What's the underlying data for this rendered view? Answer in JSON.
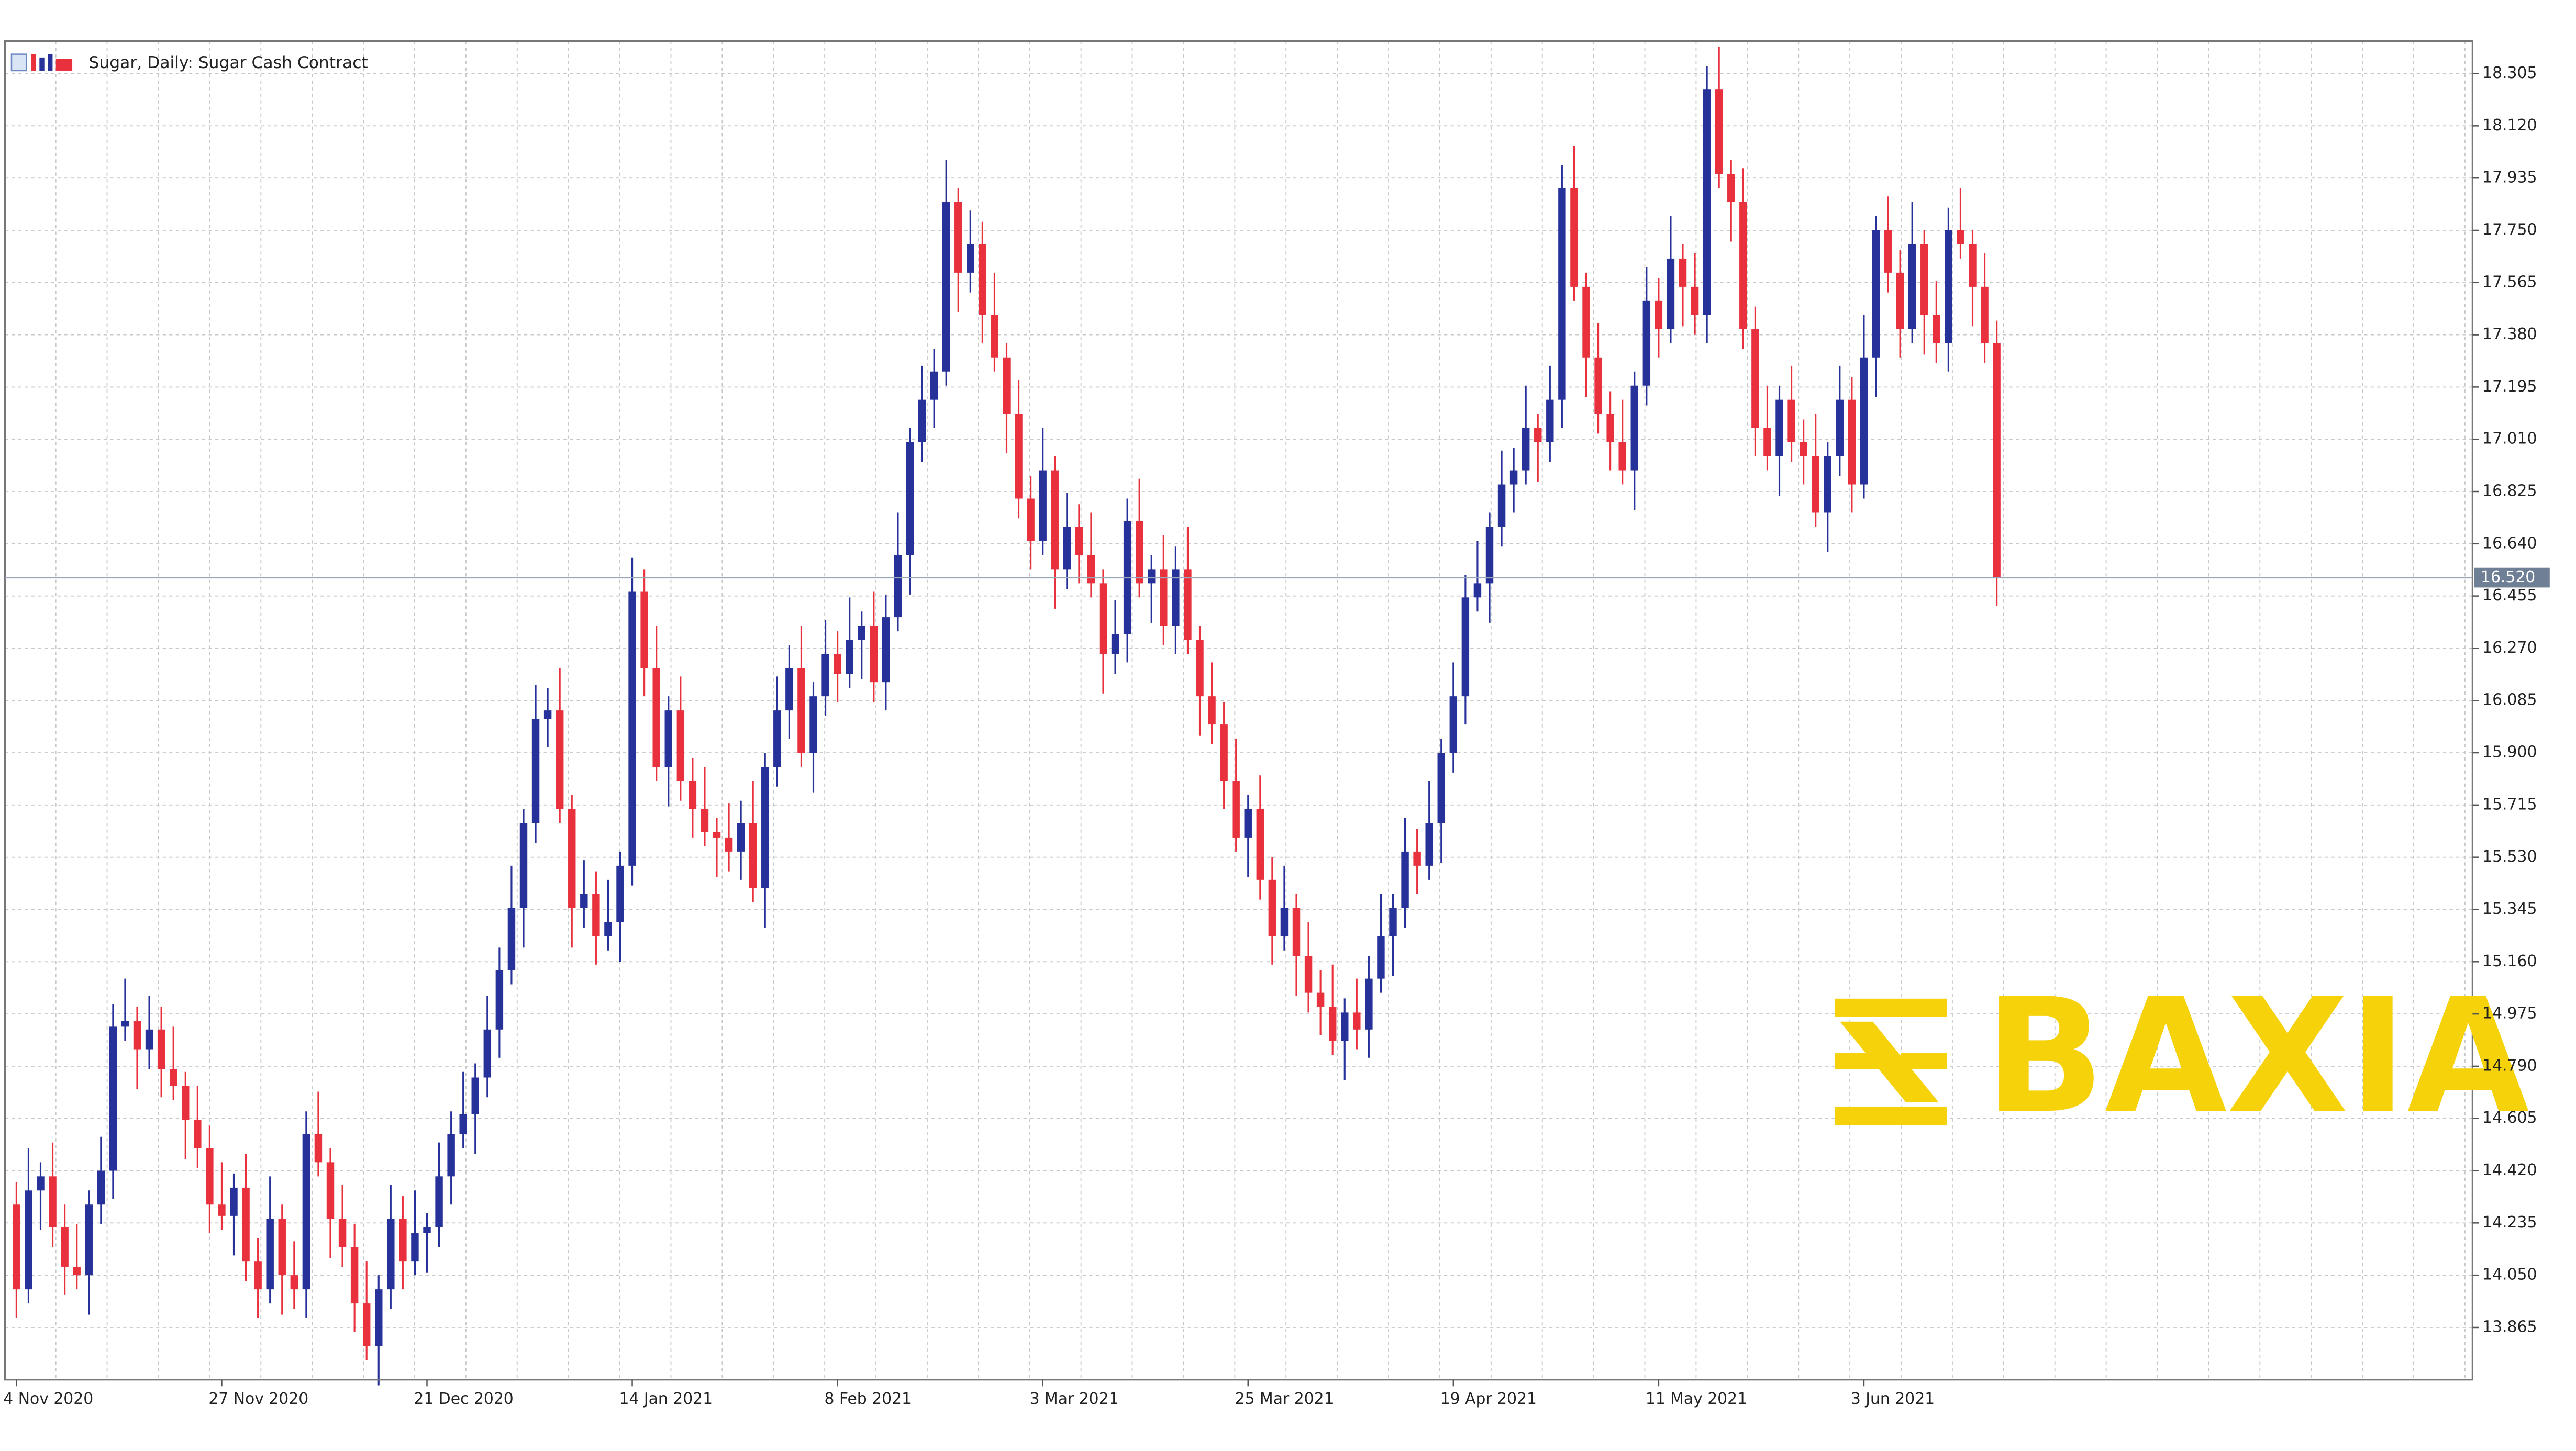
{
  "chart_data": {
    "type": "candlestick",
    "title": "Sugar, Daily:  Sugar Cash Contract",
    "watermark": "BAXIA",
    "up_color": "#27319a",
    "down_color": "#e8313c",
    "grid": true,
    "ylim": [
      13.68,
      18.42
    ],
    "yticks": [
      13.865,
      {
        "value": 14.05,
        "label": "14.050"
      },
      14.235,
      {
        "value": 14.42,
        "label": "14.420"
      },
      14.605,
      {
        "value": 14.79,
        "label": "14.790"
      },
      14.975,
      {
        "value": 15.16,
        "label": "15.160"
      },
      15.345,
      {
        "value": 15.53,
        "label": "15.530"
      },
      15.715,
      {
        "value": 15.9,
        "label": "15.900"
      },
      16.085,
      {
        "value": 16.27,
        "label": "16.270"
      },
      16.455,
      {
        "value": 16.64,
        "label": "16.640"
      },
      16.825,
      {
        "value": 17.01,
        "label": "17.010"
      },
      17.195,
      {
        "value": 17.38,
        "label": "17.380"
      },
      17.565,
      {
        "value": 17.75,
        "label": "17.750"
      },
      17.935,
      {
        "value": 18.12,
        "label": "18.120"
      },
      18.305
    ],
    "last_price": {
      "value": 16.52,
      "label": "16.520"
    },
    "categories": [
      "4 Nov 2020",
      null,
      null,
      null,
      null,
      null,
      null,
      null,
      null,
      null,
      null,
      null,
      null,
      null,
      null,
      null,
      null,
      "27 Nov 2020",
      null,
      null,
      null,
      null,
      null,
      null,
      null,
      null,
      null,
      null,
      null,
      null,
      null,
      null,
      null,
      null,
      "21 Dec 2020",
      null,
      null,
      null,
      null,
      null,
      null,
      null,
      null,
      null,
      null,
      null,
      null,
      null,
      null,
      null,
      null,
      "14 Jan 2021",
      null,
      null,
      null,
      null,
      null,
      null,
      null,
      null,
      null,
      null,
      null,
      null,
      null,
      null,
      null,
      null,
      "8 Feb 2021",
      null,
      null,
      null,
      null,
      null,
      null,
      null,
      null,
      null,
      null,
      null,
      null,
      null,
      null,
      null,
      null,
      "3 Mar 2021",
      null,
      null,
      null,
      null,
      null,
      null,
      null,
      null,
      null,
      null,
      null,
      null,
      null,
      null,
      null,
      null,
      "25 Mar 2021",
      null,
      null,
      null,
      null,
      null,
      null,
      null,
      null,
      null,
      null,
      null,
      null,
      null,
      null,
      null,
      null,
      "19 Apr 2021",
      null,
      null,
      null,
      null,
      null,
      null,
      null,
      null,
      null,
      null,
      null,
      null,
      null,
      null,
      null,
      null,
      "11 May 2021",
      null,
      null,
      null,
      null,
      null,
      null,
      null,
      null,
      null,
      null,
      null,
      null,
      null,
      null,
      null,
      null,
      "3 Jun 2021",
      null,
      null,
      null,
      null,
      null,
      null,
      null,
      null,
      null,
      null,
      null
    ],
    "series": [
      {
        "open": [
          14.3,
          14.0,
          14.35,
          14.4,
          14.22,
          14.08,
          14.05,
          14.3,
          14.42,
          14.93,
          14.95,
          14.85,
          14.92,
          14.78,
          14.72,
          14.6,
          14.5,
          14.3,
          14.26,
          14.36,
          14.1,
          14.0,
          14.25,
          14.05,
          14.0,
          14.55,
          14.45,
          14.25,
          14.15,
          13.95,
          13.8,
          14.0,
          14.25,
          14.1,
          14.2,
          14.22,
          14.4,
          14.55,
          14.62,
          14.75,
          14.92,
          15.13,
          15.35,
          15.65,
          16.02,
          16.05,
          15.7,
          15.35,
          15.4,
          15.25,
          15.3,
          15.5,
          16.47,
          16.2,
          15.85,
          16.05,
          15.8,
          15.7,
          15.62,
          15.6,
          15.55,
          15.65,
          15.42,
          15.85,
          16.05,
          16.2,
          15.9,
          16.1,
          16.25,
          16.18,
          16.3,
          16.35,
          16.15,
          16.38,
          16.6,
          17.0,
          17.15,
          17.25,
          17.85,
          17.6,
          17.7,
          17.45,
          17.3,
          17.1,
          16.8,
          16.65,
          16.9,
          16.55,
          16.7,
          16.6,
          16.5,
          16.25,
          16.32,
          16.72,
          16.5,
          16.55,
          16.35,
          16.55,
          16.3,
          16.1,
          16.0,
          15.8,
          15.6,
          15.7,
          15.45,
          15.25,
          15.35,
          15.18,
          15.05,
          15.0,
          14.88,
          14.98,
          14.92,
          15.1,
          15.25,
          15.35,
          15.55,
          15.5,
          15.65,
          15.9,
          16.1,
          16.45,
          16.5,
          16.7,
          16.85,
          16.9,
          17.05,
          17.0,
          17.15,
          17.9,
          17.55,
          17.3,
          17.1,
          17.0,
          16.9,
          17.2,
          17.5,
          17.4,
          17.65,
          17.55,
          17.45,
          18.25,
          17.95,
          17.85,
          17.4,
          17.05,
          16.95,
          17.15,
          17.0,
          16.95,
          16.75,
          16.95,
          17.15,
          16.85,
          17.3,
          17.75,
          17.6,
          17.4,
          17.7,
          17.45,
          17.35,
          17.75,
          17.7,
          17.55,
          17.35
        ],
        "high": [
          14.38,
          14.5,
          14.45,
          14.52,
          14.3,
          14.23,
          14.35,
          14.54,
          15.01,
          15.1,
          15.0,
          15.04,
          15.0,
          14.93,
          14.77,
          14.72,
          14.58,
          14.45,
          14.41,
          14.48,
          14.18,
          14.4,
          14.3,
          14.17,
          14.63,
          14.7,
          14.5,
          14.37,
          14.23,
          14.1,
          14.05,
          14.37,
          14.33,
          14.35,
          14.27,
          14.52,
          14.63,
          14.77,
          14.8,
          15.04,
          15.21,
          15.5,
          15.7,
          16.14,
          16.13,
          16.2,
          15.75,
          15.52,
          15.48,
          15.45,
          15.55,
          16.59,
          16.55,
          16.35,
          16.1,
          16.17,
          15.88,
          15.85,
          15.67,
          15.72,
          15.73,
          15.8,
          15.9,
          16.17,
          16.28,
          16.35,
          16.15,
          16.37,
          16.33,
          16.45,
          16.4,
          16.47,
          16.46,
          16.75,
          17.05,
          17.27,
          17.33,
          18.0,
          17.9,
          17.82,
          17.78,
          17.6,
          17.35,
          17.22,
          16.88,
          17.05,
          16.95,
          16.82,
          16.78,
          16.75,
          16.55,
          16.44,
          16.8,
          16.87,
          16.6,
          16.67,
          16.63,
          16.7,
          16.35,
          16.22,
          16.08,
          15.95,
          15.75,
          15.82,
          15.53,
          15.5,
          15.4,
          15.3,
          15.13,
          15.15,
          15.03,
          15.1,
          15.18,
          15.4,
          15.4,
          15.67,
          15.63,
          15.8,
          15.95,
          16.22,
          16.53,
          16.65,
          16.75,
          16.97,
          16.98,
          17.2,
          17.1,
          17.27,
          17.98,
          18.05,
          17.6,
          17.42,
          17.18,
          17.15,
          17.25,
          17.62,
          17.58,
          17.8,
          17.7,
          17.67,
          18.33,
          18.4,
          18.0,
          17.97,
          17.48,
          17.2,
          17.2,
          17.27,
          17.08,
          17.1,
          17.0,
          17.27,
          17.23,
          17.45,
          17.8,
          17.87,
          17.68,
          17.85,
          17.75,
          17.57,
          17.83,
          17.9,
          17.75,
          17.67,
          17.43
        ],
        "low": [
          13.9,
          13.95,
          14.21,
          14.15,
          13.98,
          14.0,
          13.91,
          14.23,
          14.32,
          14.88,
          14.71,
          14.78,
          14.68,
          14.67,
          14.46,
          14.43,
          14.2,
          14.21,
          14.12,
          14.03,
          13.9,
          13.95,
          13.91,
          13.93,
          13.9,
          14.4,
          14.11,
          14.08,
          13.85,
          13.75,
          13.66,
          13.93,
          14.0,
          14.05,
          14.06,
          14.15,
          14.3,
          14.5,
          14.48,
          14.68,
          14.82,
          15.08,
          15.21,
          15.58,
          15.92,
          15.65,
          15.21,
          15.28,
          15.15,
          15.2,
          15.16,
          15.43,
          16.1,
          15.8,
          15.71,
          15.73,
          15.6,
          15.57,
          15.46,
          15.48,
          15.45,
          15.37,
          15.28,
          15.78,
          15.95,
          15.85,
          15.76,
          16.03,
          16.08,
          16.13,
          16.16,
          16.08,
          16.05,
          16.33,
          16.46,
          16.93,
          17.05,
          17.2,
          17.46,
          17.53,
          17.35,
          17.25,
          16.96,
          16.73,
          16.55,
          16.6,
          16.41,
          16.48,
          16.5,
          16.45,
          16.11,
          16.18,
          16.22,
          16.45,
          16.36,
          16.28,
          16.25,
          16.25,
          15.96,
          15.93,
          15.7,
          15.55,
          15.46,
          15.38,
          15.15,
          15.2,
          15.04,
          14.98,
          14.9,
          14.83,
          14.74,
          14.85,
          14.82,
          15.05,
          15.11,
          15.28,
          15.4,
          15.45,
          15.51,
          15.83,
          16.0,
          16.4,
          16.36,
          16.63,
          16.75,
          16.85,
          16.86,
          16.93,
          17.05,
          17.5,
          17.16,
          17.03,
          16.9,
          16.85,
          16.76,
          17.13,
          17.3,
          17.35,
          17.41,
          17.38,
          17.35,
          17.9,
          17.71,
          17.33,
          16.95,
          16.9,
          16.81,
          16.93,
          16.85,
          16.7,
          16.61,
          16.88,
          16.75,
          16.8,
          17.16,
          17.53,
          17.3,
          17.35,
          17.31,
          17.28,
          17.25,
          17.65,
          17.41,
          17.28,
          16.42
        ],
        "close": [
          14.0,
          14.35,
          14.4,
          14.22,
          14.08,
          14.05,
          14.3,
          14.42,
          14.93,
          14.95,
          14.85,
          14.92,
          14.78,
          14.72,
          14.6,
          14.5,
          14.3,
          14.26,
          14.36,
          14.1,
          14.0,
          14.25,
          14.05,
          14.0,
          14.55,
          14.45,
          14.25,
          14.15,
          13.95,
          13.8,
          14.0,
          14.25,
          14.1,
          14.2,
          14.22,
          14.4,
          14.55,
          14.62,
          14.75,
          14.92,
          15.13,
          15.35,
          15.65,
          16.02,
          16.05,
          15.7,
          15.35,
          15.4,
          15.25,
          15.3,
          15.5,
          16.47,
          16.2,
          15.85,
          16.05,
          15.8,
          15.7,
          15.62,
          15.6,
          15.55,
          15.65,
          15.42,
          15.85,
          16.05,
          16.2,
          15.9,
          16.1,
          16.25,
          16.18,
          16.3,
          16.35,
          16.15,
          16.38,
          16.6,
          17.0,
          17.15,
          17.25,
          17.85,
          17.6,
          17.7,
          17.45,
          17.3,
          17.1,
          16.8,
          16.65,
          16.9,
          16.55,
          16.7,
          16.6,
          16.5,
          16.25,
          16.32,
          16.72,
          16.5,
          16.55,
          16.35,
          16.55,
          16.3,
          16.1,
          16.0,
          15.8,
          15.6,
          15.7,
          15.45,
          15.25,
          15.35,
          15.18,
          15.05,
          15.0,
          14.88,
          14.98,
          14.92,
          15.1,
          15.25,
          15.35,
          15.55,
          15.5,
          15.65,
          15.9,
          16.1,
          16.45,
          16.5,
          16.7,
          16.85,
          16.9,
          17.05,
          17.0,
          17.15,
          17.9,
          17.55,
          17.3,
          17.1,
          17.0,
          16.9,
          17.2,
          17.5,
          17.4,
          17.65,
          17.55,
          17.45,
          18.25,
          17.95,
          17.85,
          17.4,
          17.05,
          16.95,
          17.15,
          17.0,
          16.95,
          16.75,
          16.95,
          17.15,
          16.85,
          17.3,
          17.75,
          17.6,
          17.4,
          17.7,
          17.45,
          17.35,
          17.75,
          17.7,
          17.55,
          17.35,
          16.52
        ]
      }
    ]
  }
}
